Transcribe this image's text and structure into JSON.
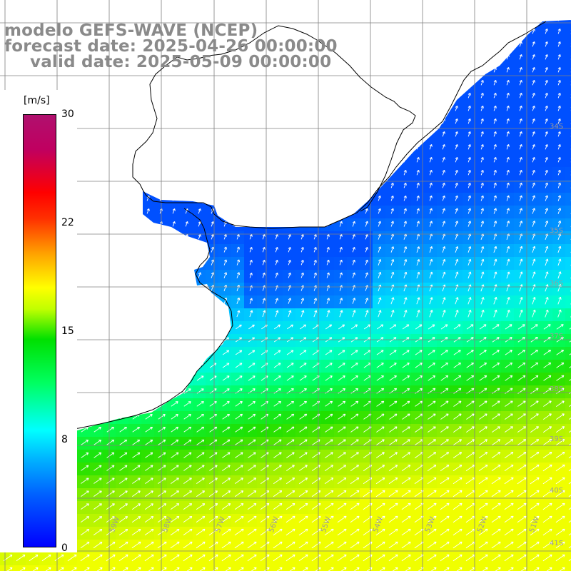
{
  "title": {
    "line1": "modelo GEFS-WAVE (NCEP)",
    "line2": "forecast date: 2025-04-26 00:00:00",
    "line3": "valid date: 2025-05-09 00:00:00"
  },
  "colorbar": {
    "unit": "[m/s]",
    "ticks": [
      "30",
      "22",
      "15",
      "8",
      "0"
    ],
    "colors": [
      "#0000ff",
      "#00b0ff",
      "#00ffff",
      "#00e000",
      "#ffff00",
      "#ff8000",
      "#ff0000",
      "#b0106e"
    ]
  },
  "axes": {
    "lat_labels": [
      "34S",
      "35S",
      "36S",
      "37S",
      "38S",
      "39S",
      "40S",
      "41S"
    ],
    "lon_labels": [
      "59W",
      "58W",
      "57W",
      "56W",
      "55W",
      "54W",
      "53W",
      "52W",
      "51W"
    ]
  },
  "map": {
    "lon_range": [
      -61,
      -50.5
    ],
    "lat_range": [
      -41.5,
      -30
    ],
    "land_color": "#ffffff",
    "gridline_color": "#808080",
    "arrow_color": "#ffffff",
    "coastline_color": "#000000"
  },
  "colors": {
    "title": "#8a8a8a",
    "axis_label": "#9a9a9a"
  }
}
